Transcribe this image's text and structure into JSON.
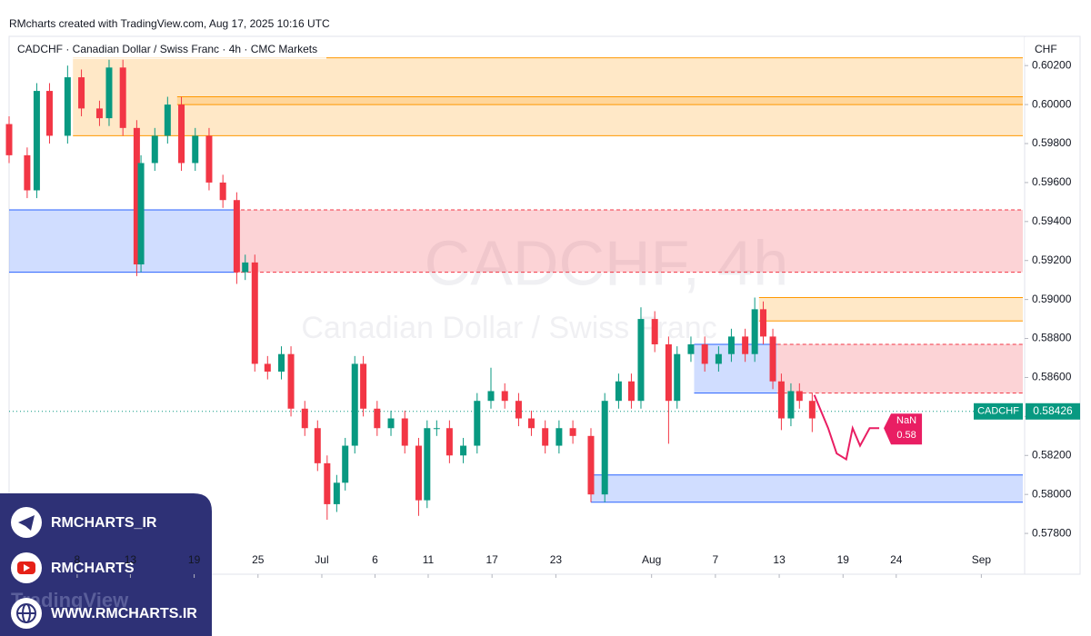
{
  "header": "RMcharts created with TradingView.com, Aug 17, 2025 10:16 UTC",
  "chart_data": {
    "type": "candlestick",
    "title": "CADCHF · Canadian Dollar / Swiss Franc · 4h · CMC Markets",
    "watermark": "CADCHF, 4h",
    "watermark_subtitle": "Canadian Dollar / Swiss Franc",
    "currency": "CHF",
    "symbol": "CADCHF",
    "last_price": 0.58426,
    "up_color": "#089981",
    "down_color": "#f23645",
    "xlim": [
      1.6,
      96.9
    ],
    "ylim": [
      0.576,
      0.6035
    ],
    "xticks": [
      {
        "value": 8,
        "label": "8"
      },
      {
        "value": 13,
        "label": "13"
      },
      {
        "value": 19,
        "label": "19"
      },
      {
        "value": 25,
        "label": "25"
      },
      {
        "value": 31,
        "label": "Jul"
      },
      {
        "value": 36,
        "label": "6"
      },
      {
        "value": 41,
        "label": "11"
      },
      {
        "value": 47,
        "label": "17"
      },
      {
        "value": 53,
        "label": "23"
      },
      {
        "value": 62,
        "label": "Aug"
      },
      {
        "value": 68,
        "label": "7"
      },
      {
        "value": 74,
        "label": "13"
      },
      {
        "value": 80,
        "label": "19"
      },
      {
        "value": 85,
        "label": "24"
      },
      {
        "value": 93,
        "label": "Sep"
      }
    ],
    "yticks": [
      {
        "value": 0.578,
        "label": "0.57800"
      },
      {
        "value": 0.58,
        "label": "0.58000"
      },
      {
        "value": 0.582,
        "label": "0.58200"
      },
      {
        "value": 0.584,
        "label": "0.58400"
      },
      {
        "value": 0.586,
        "label": "0.58600"
      },
      {
        "value": 0.588,
        "label": "0.58800"
      },
      {
        "value": 0.59,
        "label": "0.59000"
      },
      {
        "value": 0.592,
        "label": "0.59200"
      },
      {
        "value": 0.594,
        "label": "0.59400"
      },
      {
        "value": 0.596,
        "label": "0.59600"
      },
      {
        "value": 0.598,
        "label": "0.59800"
      },
      {
        "value": 0.6,
        "label": "0.60000"
      },
      {
        "value": 0.602,
        "label": "0.60200"
      }
    ],
    "candles": {
      "x": [
        1.6,
        3.3,
        4.2,
        5.4,
        7.1,
        8.4,
        10.1,
        11.0,
        12.3,
        13.6,
        14.0,
        15.3,
        16.5,
        17.8,
        19.1,
        20.4,
        21.7,
        23.0,
        23.8,
        24.7,
        25.9,
        27.2,
        28.1,
        29.4,
        30.6,
        31.5,
        32.4,
        33.2,
        34.1,
        34.9,
        36.2,
        37.5,
        38.8,
        40.1,
        40.9,
        41.8,
        43.0,
        44.3,
        45.6,
        46.9,
        48.2,
        49.5,
        50.7,
        52.0,
        53.3,
        54.6,
        56.3,
        57.6,
        58.9,
        60.1,
        61.0,
        62.3,
        63.6,
        64.4,
        65.7,
        67.0,
        68.3,
        69.5,
        70.8,
        71.7,
        72.5,
        73.4,
        74.2,
        75.1,
        75.9,
        77.1
      ],
      "open": [
        0.599,
        0.5974,
        0.5956,
        0.6007,
        0.5984,
        0.6014,
        0.5998,
        0.5993,
        0.6019,
        0.5988,
        0.5918,
        0.597,
        0.5984,
        0.6,
        0.597,
        0.5984,
        0.596,
        0.5951,
        0.5914,
        0.5919,
        0.5867,
        0.5863,
        0.5872,
        0.5844,
        0.5834,
        0.5816,
        0.5795,
        0.5806,
        0.5825,
        0.5867,
        0.5844,
        0.5834,
        0.5839,
        0.5825,
        0.5797,
        0.5834,
        0.5834,
        0.582,
        0.5825,
        0.5848,
        0.5853,
        0.5848,
        0.5839,
        0.5834,
        0.5825,
        0.5834,
        0.583,
        0.58,
        0.5848,
        0.5858,
        0.5848,
        0.589,
        0.5877,
        0.5848,
        0.5872,
        0.5877,
        0.5867,
        0.5872,
        0.5881,
        0.5872,
        0.5895,
        0.5881,
        0.5858,
        0.5839,
        0.5853,
        0.5848
      ],
      "high": [
        0.5994,
        0.5978,
        0.6011,
        0.6011,
        0.602,
        0.6018,
        0.6002,
        0.6023,
        0.6023,
        0.5992,
        0.5974,
        0.5988,
        0.6004,
        0.6004,
        0.5988,
        0.5988,
        0.5964,
        0.5955,
        0.5923,
        0.5923,
        0.5871,
        0.5876,
        0.5876,
        0.5848,
        0.5838,
        0.582,
        0.581,
        0.5829,
        0.5871,
        0.5871,
        0.5848,
        0.5843,
        0.5843,
        0.5829,
        0.5838,
        0.5838,
        0.5838,
        0.5829,
        0.5852,
        0.5865,
        0.5857,
        0.5852,
        0.5843,
        0.5838,
        0.5838,
        0.5838,
        0.5834,
        0.5852,
        0.5862,
        0.5862,
        0.5896,
        0.5894,
        0.5881,
        0.5876,
        0.5881,
        0.5881,
        0.5876,
        0.5885,
        0.5885,
        0.5901,
        0.5899,
        0.5885,
        0.5862,
        0.5857,
        0.5857,
        0.5852
      ],
      "low": [
        0.597,
        0.5952,
        0.5952,
        0.598,
        0.598,
        0.5994,
        0.5989,
        0.5989,
        0.5984,
        0.5912,
        0.5914,
        0.5966,
        0.598,
        0.5966,
        0.5966,
        0.5956,
        0.5947,
        0.5908,
        0.591,
        0.5863,
        0.5859,
        0.5859,
        0.584,
        0.583,
        0.5812,
        0.5787,
        0.5791,
        0.5802,
        0.5821,
        0.584,
        0.583,
        0.583,
        0.5821,
        0.5789,
        0.5793,
        0.583,
        0.5816,
        0.5816,
        0.5821,
        0.5844,
        0.5844,
        0.5835,
        0.583,
        0.5821,
        0.5821,
        0.5826,
        0.5796,
        0.5796,
        0.5844,
        0.5844,
        0.5844,
        0.5873,
        0.5826,
        0.5844,
        0.5868,
        0.5863,
        0.5863,
        0.5868,
        0.5868,
        0.5868,
        0.5877,
        0.5854,
        0.5833,
        0.5835,
        0.5844,
        0.5832
      ],
      "close": [
        0.5974,
        0.5956,
        0.6007,
        0.5984,
        0.6014,
        0.5998,
        0.5993,
        0.6019,
        0.5988,
        0.5918,
        0.597,
        0.5984,
        0.6,
        0.597,
        0.5984,
        0.596,
        0.5951,
        0.5914,
        0.5919,
        0.5867,
        0.5863,
        0.5872,
        0.5844,
        0.5834,
        0.5816,
        0.5795,
        0.5806,
        0.5825,
        0.5867,
        0.5844,
        0.5834,
        0.5839,
        0.5825,
        0.5797,
        0.5834,
        0.5834,
        0.582,
        0.5825,
        0.5848,
        0.5853,
        0.5848,
        0.5839,
        0.5834,
        0.5825,
        0.5834,
        0.583,
        0.58,
        0.5848,
        0.5858,
        0.5848,
        0.589,
        0.5877,
        0.5848,
        0.5872,
        0.5877,
        0.5867,
        0.5872,
        0.5881,
        0.5872,
        0.5895,
        0.5881,
        0.5858,
        0.5839,
        0.5853,
        0.5848,
        0.5839
      ]
    },
    "forecast": {
      "color": "#e91e63",
      "x": [
        77.3,
        78.6,
        79.4,
        80.3,
        80.9,
        81.6,
        82.5,
        83.4
      ],
      "values": [
        0.5851,
        0.5834,
        0.5821,
        0.5818,
        0.5834,
        0.5825,
        0.5834,
        0.5834
      ],
      "label": "NaN",
      "value_label": "0.58"
    },
    "zones": [
      {
        "x": [
          7.6,
          96.9
        ],
        "y": [
          0.6024,
          0.5984
        ],
        "color": "#ff9800",
        "style": "solid"
      },
      {
        "x": [
          17.4,
          96.9
        ],
        "y": [
          0.6004,
          0.6
        ],
        "color": "#ff9800",
        "style": "solid"
      },
      {
        "x": [
          1.6,
          22.8
        ],
        "y": [
          0.5946,
          0.5914
        ],
        "color": "#2962ff",
        "style": "solid"
      },
      {
        "x": [
          22.8,
          96.9
        ],
        "y": [
          0.5946,
          0.5914
        ],
        "color": "#f23645",
        "style": "dashed"
      },
      {
        "x": [
          72.1,
          96.9
        ],
        "y": [
          0.5901,
          0.5889
        ],
        "color": "#ff9800",
        "style": "solid"
      },
      {
        "x": [
          73.8,
          96.9
        ],
        "y": [
          0.5877,
          0.5852
        ],
        "color": "#f23645",
        "style": "dashed"
      },
      {
        "x": [
          66.0,
          73.8
        ],
        "y": [
          0.5877,
          0.5852
        ],
        "color": "#2962ff",
        "style": "solid"
      },
      {
        "x": [
          56.3,
          96.9
        ],
        "y": [
          0.581,
          0.5796
        ],
        "color": "#2962ff",
        "style": "solid"
      }
    ]
  },
  "overlay": {
    "telegram": "RMCHARTS_IR",
    "youtube": "RMCHARTS",
    "website": "WWW.RMCHARTS.IR",
    "logo": "TradingView"
  }
}
